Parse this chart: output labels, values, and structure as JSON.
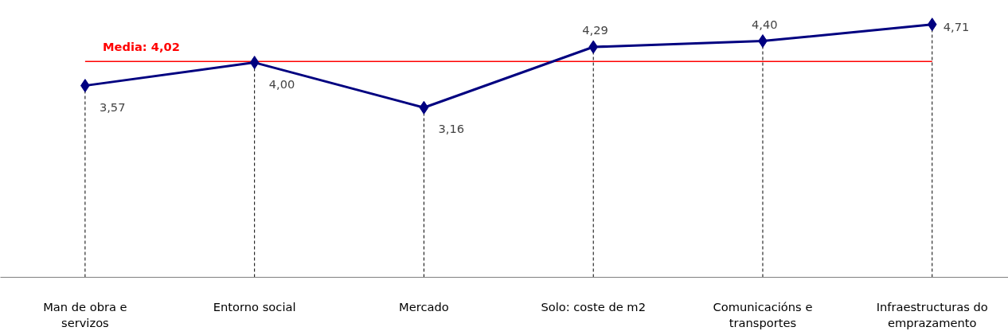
{
  "chart_data": {
    "type": "line",
    "categories": [
      "Man de obra e servizos",
      "Entorno social",
      "Mercado",
      "Solo: coste de m2",
      "Comunicacións e transportes",
      "Infraestructuras do emprazamento"
    ],
    "series": [
      {
        "color": "#000080",
        "values": [
          3.57,
          4.0,
          3.16,
          4.29,
          4.4,
          4.71
        ],
        "value_labels": [
          "3,57",
          "4,00",
          "3,16",
          "4,29",
          "4,40",
          "4,71"
        ]
      }
    ],
    "tick_labels": "x",
    "grid": "x",
    "marker": "diamond",
    "line_style": "solid",
    "ref_lines": [
      {
        "axis": "y",
        "value": 4.02,
        "label": "Media: 4,02",
        "color": "#ff0000"
      }
    ]
  }
}
